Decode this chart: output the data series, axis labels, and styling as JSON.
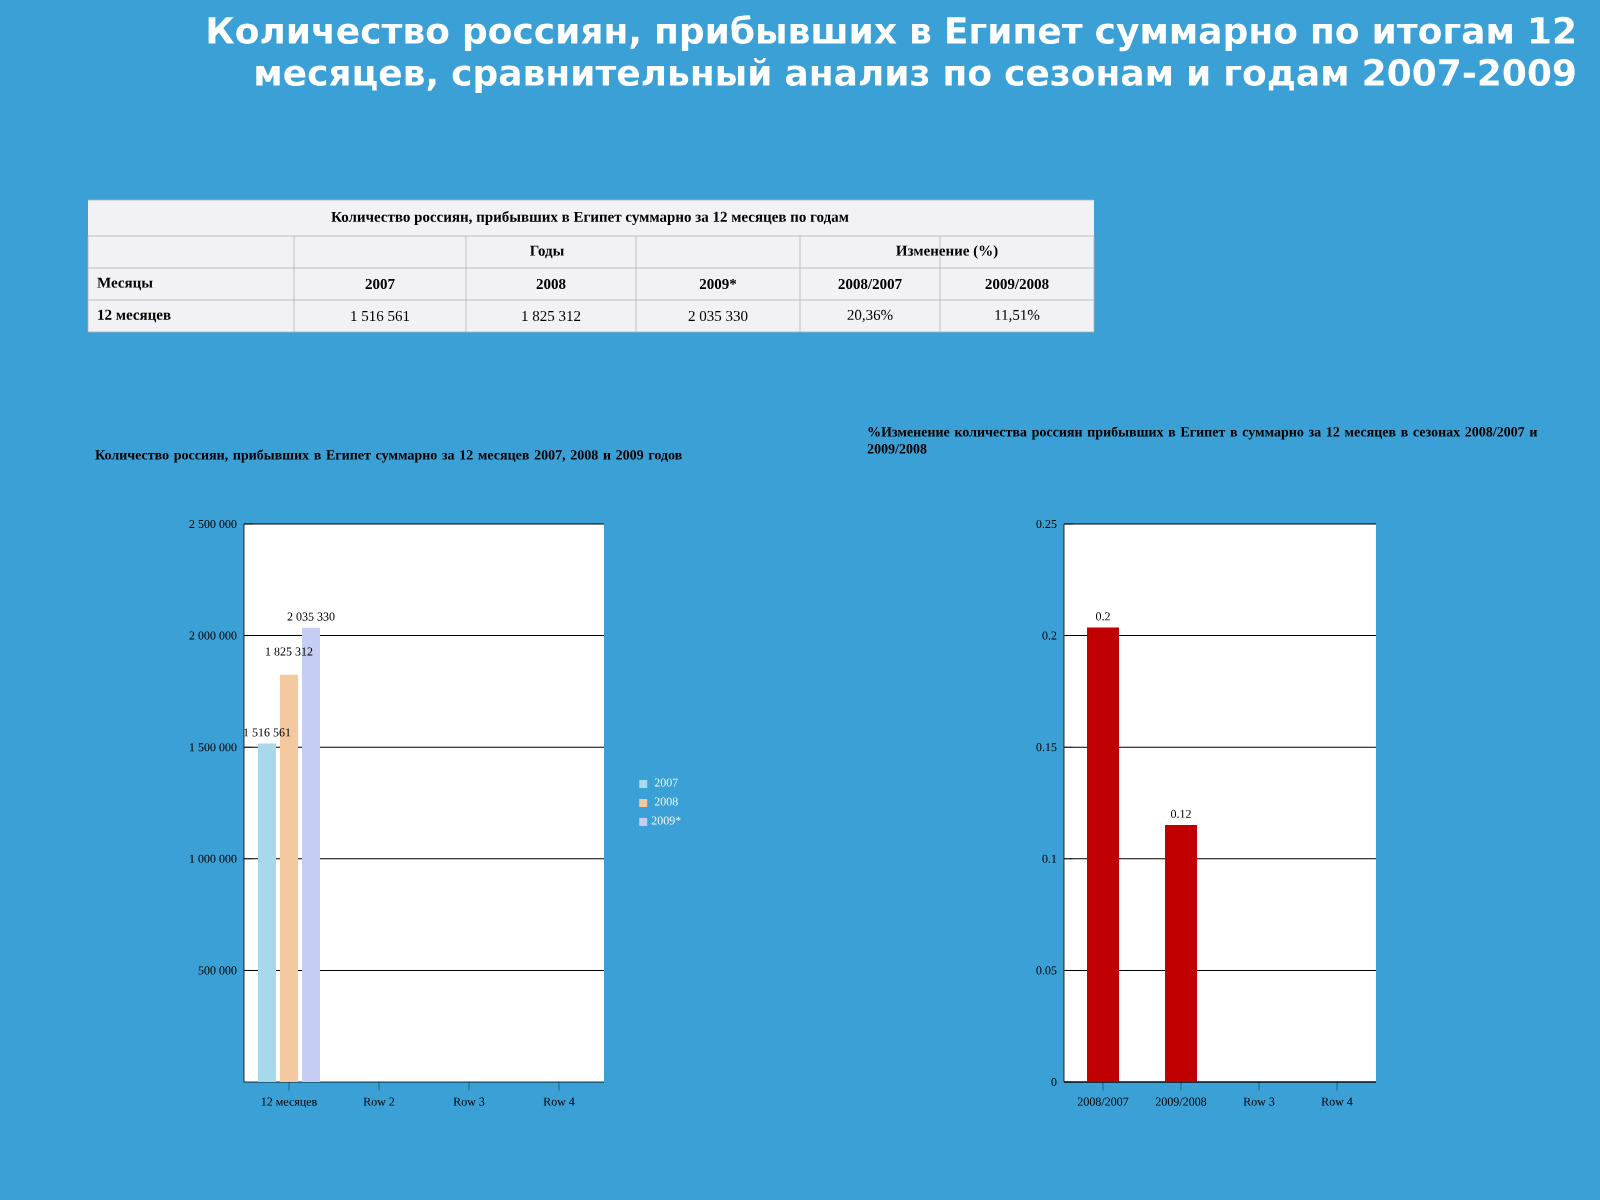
{
  "chart_data": [
    {
      "type": "other",
      "title": "Количество россиян, прибывших в Египет суммарно по итогам 12 месяцев, сравнительный анализ по сезонам и годам 2007-2009",
      "subtitle": "Количество россиян, прибывших в Египет суммарно за 12 месяцев по годам",
      "annotations": [
        "Годы",
        "Изменение (%)",
        "Месяцы",
        "2007",
        "2008",
        "2009*",
        "2008/2007",
        "2009/2008",
        "12 месяцев",
        "1 516 561",
        "1 825 312",
        "2 035 330",
        "20,36%",
        "11,51%"
      ]
    },
    {
      "type": "bar",
      "title": "Количество россиян, прибывших в Египет суммарно за 12 месяцев 2007, 2008 и 2009 годов",
      "categories": [
        "12 месяцев",
        "Row 2",
        "Row 3",
        "Row 4"
      ],
      "series": [
        {
          "name": "2007",
          "color": "#a8d8ec",
          "values": [
            1516561,
            null,
            null,
            null
          ],
          "value_labels": [
            "1 516 561",
            null,
            null,
            null
          ]
        },
        {
          "name": "2008",
          "color": "#f5c9a0",
          "values": [
            1825312,
            null,
            null,
            null
          ],
          "value_labels": [
            "1 825 312",
            null,
            null,
            null
          ]
        },
        {
          "name": "2009*",
          "color": "#c5cdf5",
          "values": [
            2035330,
            null,
            null,
            null
          ],
          "value_labels": [
            "2 035 330",
            null,
            null,
            null
          ]
        }
      ],
      "ylim": [
        0,
        2500000
      ],
      "yticks": [
        {
          "value": 500000,
          "label": "500 000"
        },
        {
          "value": 1000000,
          "label": "1 000 000"
        },
        {
          "value": 1500000,
          "label": "1 500 000"
        },
        {
          "value": 2000000,
          "label": "2 000 000"
        },
        {
          "value": 2500000,
          "label": "2 500 000"
        }
      ],
      "grid": "y",
      "legend": "right"
    },
    {
      "type": "bar",
      "title": "%Изменение количества россиян прибывших в Египет в суммарно за 12 месяцев в сезонах 2008/2007 и 2009/2008",
      "categories": [
        "2008/2007",
        "2009/2008",
        "Row 3",
        "Row 4"
      ],
      "series": [
        {
          "color": "#c00000",
          "values": [
            0.2036,
            0.1151,
            null,
            null
          ],
          "value_labels": [
            "0.2",
            "0.12",
            null,
            null
          ]
        }
      ],
      "ylim": [
        0,
        0.25
      ],
      "yticks": [
        0,
        0.05,
        0.1,
        0.15,
        0.2,
        0.25
      ],
      "grid": "y",
      "legend": false
    }
  ]
}
